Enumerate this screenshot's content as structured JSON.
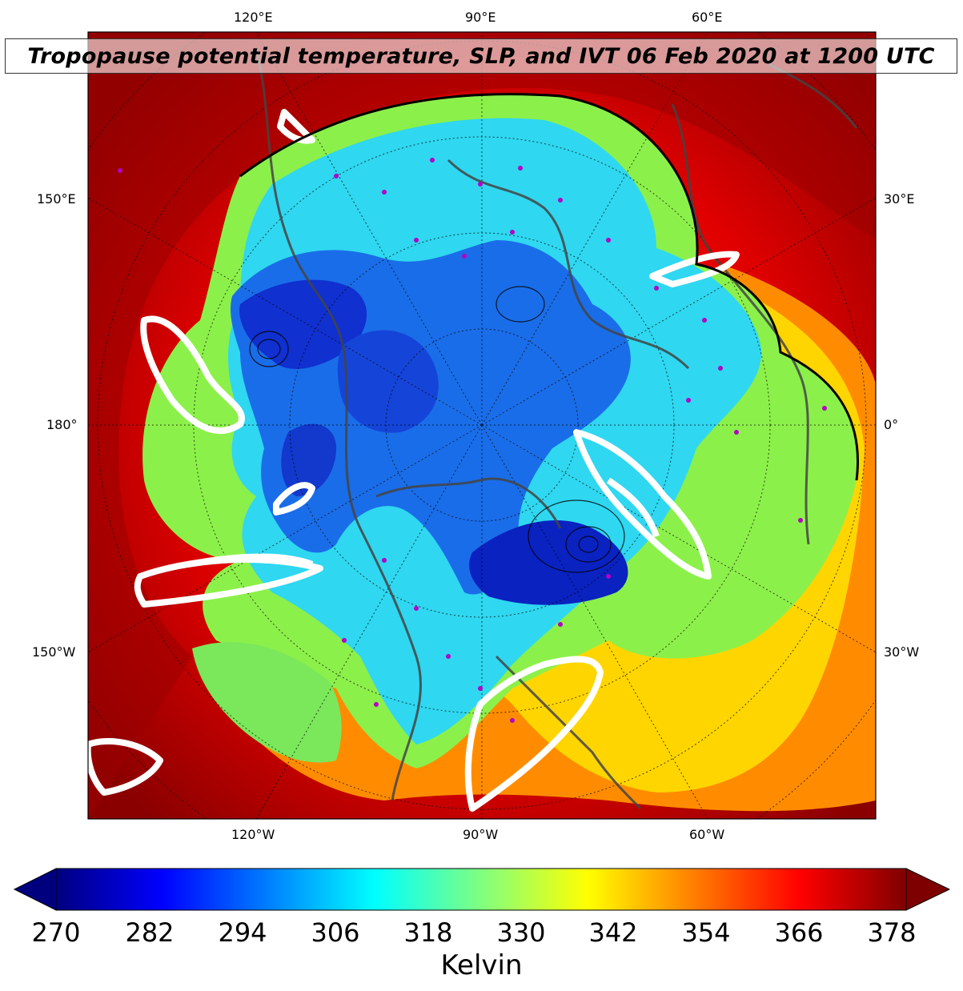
{
  "title": "Tropopause potential temperature, SLP, and IVT 06 Feb 2020 at 1200 UTC",
  "map": {
    "top_labels": [
      "120°E",
      "90°E",
      "60°E"
    ],
    "bottom_labels": [
      "120°W",
      "90°W",
      "60°W"
    ],
    "left_labels": [
      "150°E",
      "180°",
      "150°W"
    ],
    "right_labels": [
      "30°E",
      "0°",
      "30°W"
    ]
  },
  "colorbar": {
    "ticks": [
      "270",
      "282",
      "294",
      "306",
      "318",
      "330",
      "342",
      "354",
      "366",
      "378"
    ],
    "label": "Kelvin",
    "colormap": [
      "#00007f",
      "#0000ff",
      "#007fff",
      "#00ffff",
      "#7fff7f",
      "#ffff00",
      "#ff7f00",
      "#ff0000",
      "#7f0000"
    ]
  }
}
